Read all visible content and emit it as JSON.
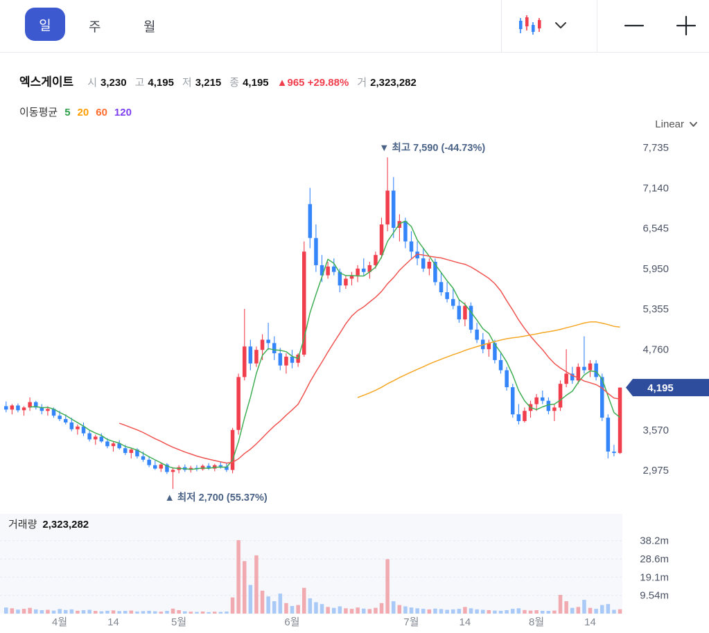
{
  "toolbar": {
    "tabs": [
      {
        "label": "일",
        "active": true
      },
      {
        "label": "주",
        "active": false
      },
      {
        "label": "월",
        "active": false
      }
    ],
    "chart_type_icon": "candlestick-chart-icon",
    "zoom_out_label": "−",
    "zoom_in_label": "+"
  },
  "header": {
    "stock_name": "엑스게이트",
    "fields": [
      {
        "label": "시",
        "value": "3,230"
      },
      {
        "label": "고",
        "value": "4,195"
      },
      {
        "label": "저",
        "value": "3,215"
      },
      {
        "label": "종",
        "value": "4,195"
      }
    ],
    "change": "▲965 +29.88%",
    "volume_label": "거",
    "volume_value": "2,323,282"
  },
  "ma_legend": {
    "title": "이동평균",
    "items": [
      {
        "label": "5",
        "color": "#2fa14e"
      },
      {
        "label": "20",
        "color": "#ff9d00"
      },
      {
        "label": "60",
        "color": "#ff6b2c"
      },
      {
        "label": "120",
        "color": "#7d3ff0"
      }
    ]
  },
  "scale_selector": {
    "label": "Linear",
    "icon": "chevron-down-icon"
  },
  "volume_panel": {
    "title": "거래량",
    "value": "2,323,282"
  },
  "chart_data": {
    "type": "candlestick",
    "title": "엑스게이트 일봉 차트",
    "y_axis_labels": [
      {
        "v": 7735,
        "label": "7,735"
      },
      {
        "v": 7140,
        "label": "7,140"
      },
      {
        "v": 6545,
        "label": "6,545"
      },
      {
        "v": 5950,
        "label": "5,950"
      },
      {
        "v": 5355,
        "label": "5,355"
      },
      {
        "v": 4760,
        "label": "4,760"
      },
      {
        "v": 3570,
        "label": "3,570"
      },
      {
        "v": 2975,
        "label": "2,975"
      }
    ],
    "price_range": [
      2975,
      7735
    ],
    "price_badge": {
      "v": 4195,
      "label": "4,195"
    },
    "volume_axis_labels": [
      {
        "v": 38.2,
        "label": "38.2m"
      },
      {
        "v": 28.6,
        "label": "28.6m"
      },
      {
        "v": 19.1,
        "label": "19.1m"
      },
      {
        "v": 9.54,
        "label": "9.54m"
      }
    ],
    "x_ticks": [
      {
        "i": 9,
        "label": "4월"
      },
      {
        "i": 18,
        "label": "14"
      },
      {
        "i": 29,
        "label": "5월"
      },
      {
        "i": 48,
        "label": "6월"
      },
      {
        "i": 68,
        "label": "7월"
      },
      {
        "i": 77,
        "label": "14"
      },
      {
        "i": 89,
        "label": "8월"
      },
      {
        "i": 98,
        "label": "14"
      }
    ],
    "annotations": {
      "high": {
        "i": 64,
        "v": 7590,
        "marker": "▼",
        "label": "최고 7,590 (-44.73%)"
      },
      "low": {
        "i": 28,
        "v": 2700,
        "marker": "▲",
        "label": "최저 2,700 (55.37%)"
      }
    },
    "ma_periods": [
      5,
      20,
      60
    ],
    "colors": {
      "up": "#f03e4d",
      "down": "#3485fa",
      "ma5": "#3fae53",
      "ma20": "#ef5350",
      "ma60": "#f5a623",
      "vol_up": "#f2aab1",
      "vol_down": "#a9c9f7",
      "badge": "#2e4e9d",
      "annotation": "#4a6286"
    },
    "candles": [
      [
        3920,
        3990,
        3830,
        3870
      ],
      [
        3870,
        3950,
        3800,
        3930
      ],
      [
        3930,
        3960,
        3830,
        3860
      ],
      [
        3860,
        3920,
        3780,
        3900
      ],
      [
        3900,
        4050,
        3850,
        3980
      ],
      [
        3980,
        4000,
        3870,
        3900
      ],
      [
        3900,
        3950,
        3800,
        3850
      ],
      [
        3850,
        3920,
        3780,
        3880
      ],
      [
        3880,
        3900,
        3750,
        3780
      ],
      [
        3780,
        3850,
        3700,
        3730
      ],
      [
        3730,
        3800,
        3650,
        3680
      ],
      [
        3680,
        3750,
        3550,
        3580
      ],
      [
        3580,
        3650,
        3500,
        3620
      ],
      [
        3620,
        3680,
        3480,
        3520
      ],
      [
        3520,
        3560,
        3400,
        3430
      ],
      [
        3430,
        3500,
        3350,
        3470
      ],
      [
        3470,
        3520,
        3380,
        3400
      ],
      [
        3400,
        3450,
        3300,
        3330
      ],
      [
        3330,
        3400,
        3250,
        3370
      ],
      [
        3370,
        3420,
        3280,
        3300
      ],
      [
        3300,
        3350,
        3200,
        3230
      ],
      [
        3230,
        3300,
        3150,
        3280
      ],
      [
        3280,
        3300,
        3150,
        3180
      ],
      [
        3180,
        3250,
        3100,
        3130
      ],
      [
        3130,
        3180,
        3020,
        3050
      ],
      [
        3050,
        3120,
        2980,
        3000
      ],
      [
        3000,
        3080,
        2950,
        3060
      ],
      [
        3060,
        3080,
        2920,
        2950
      ],
      [
        2950,
        3020,
        2700,
        2980
      ],
      [
        2980,
        3050,
        2930,
        3020
      ],
      [
        3020,
        3060,
        2950,
        2980
      ],
      [
        2980,
        3040,
        2940,
        3010
      ],
      [
        3010,
        3050,
        2960,
        2990
      ],
      [
        2990,
        3060,
        2970,
        3040
      ],
      [
        3040,
        3080,
        2980,
        3000
      ],
      [
        3000,
        3070,
        2960,
        3050
      ],
      [
        3050,
        3100,
        3000,
        3030
      ],
      [
        3030,
        3080,
        2950,
        2980
      ],
      [
        2980,
        3600,
        2930,
        3570
      ],
      [
        3570,
        4400,
        3500,
        4350
      ],
      [
        4350,
        5355,
        4300,
        4800
      ],
      [
        4800,
        4900,
        4450,
        4550
      ],
      [
        4550,
        4800,
        4500,
        4750
      ],
      [
        4750,
        4980,
        4600,
        4900
      ],
      [
        4900,
        5150,
        4750,
        4850
      ],
      [
        4850,
        4950,
        4600,
        4700
      ],
      [
        4700,
        4780,
        4450,
        4520
      ],
      [
        4520,
        4700,
        4400,
        4650
      ],
      [
        4650,
        4750,
        4480,
        4560
      ],
      [
        4560,
        4700,
        4500,
        4680
      ],
      [
        4680,
        6350,
        4650,
        6200
      ],
      [
        6900,
        7140,
        6250,
        6400
      ],
      [
        6400,
        6600,
        5900,
        6000
      ],
      [
        6000,
        6150,
        5750,
        5850
      ],
      [
        5850,
        6050,
        5800,
        5980
      ],
      [
        5980,
        6100,
        5850,
        5900
      ],
      [
        5900,
        5950,
        5600,
        5700
      ],
      [
        5700,
        5850,
        5650,
        5800
      ],
      [
        5800,
        5900,
        5700,
        5850
      ],
      [
        5850,
        6000,
        5750,
        5950
      ],
      [
        5950,
        6100,
        5850,
        5900
      ],
      [
        5900,
        6050,
        5800,
        6000
      ],
      [
        6000,
        6200,
        5950,
        6150
      ],
      [
        6150,
        6700,
        6100,
        6600
      ],
      [
        6600,
        7590,
        6500,
        7100
      ],
      [
        7100,
        7300,
        6400,
        6550
      ],
      [
        6550,
        6750,
        6350,
        6650
      ],
      [
        6650,
        6700,
        6250,
        6350
      ],
      [
        6350,
        6500,
        6100,
        6200
      ],
      [
        6200,
        6350,
        6000,
        6100
      ],
      [
        6100,
        6250,
        5900,
        5950
      ],
      [
        5950,
        6100,
        5850,
        6050
      ],
      [
        6050,
        6100,
        5700,
        5750
      ],
      [
        5750,
        5900,
        5550,
        5600
      ],
      [
        5600,
        5750,
        5450,
        5500
      ],
      [
        5500,
        5650,
        5350,
        5400
      ],
      [
        5400,
        5500,
        5150,
        5200
      ],
      [
        5200,
        5450,
        5100,
        5400
      ],
      [
        5400,
        5450,
        5000,
        5050
      ],
      [
        5050,
        5150,
        4850,
        4900
      ],
      [
        4900,
        5000,
        4700,
        4760
      ],
      [
        4760,
        4900,
        4650,
        4850
      ],
      [
        4850,
        4900,
        4550,
        4600
      ],
      [
        4600,
        4700,
        4400,
        4450
      ],
      [
        4450,
        4500,
        4150,
        4200
      ],
      [
        4200,
        4250,
        3750,
        3800
      ],
      [
        3800,
        3950,
        3650,
        3700
      ],
      [
        3700,
        3900,
        3680,
        3850
      ],
      [
        3850,
        4000,
        3750,
        3950
      ],
      [
        3950,
        4100,
        3850,
        4050
      ],
      [
        4050,
        4150,
        3950,
        4000
      ],
      [
        4000,
        4050,
        3800,
        3850
      ],
      [
        3850,
        3950,
        3700,
        3900
      ],
      [
        3900,
        4300,
        3850,
        4250
      ],
      [
        4250,
        4760,
        4200,
        4400
      ],
      [
        4400,
        4500,
        4250,
        4300
      ],
      [
        4300,
        4550,
        4250,
        4500
      ],
      [
        4500,
        4950,
        4400,
        4450
      ],
      [
        4450,
        4600,
        4350,
        4550
      ],
      [
        4550,
        4600,
        4300,
        4350
      ],
      [
        4350,
        4400,
        3700,
        3750
      ],
      [
        3750,
        3800,
        3150,
        3250
      ],
      [
        3250,
        3350,
        3180,
        3230
      ],
      [
        3230,
        4195,
        3215,
        4195
      ]
    ],
    "volumes_m": [
      3.2,
      2.8,
      2.1,
      2.5,
      3.0,
      2.2,
      1.8,
      2.0,
      1.6,
      2.4,
      1.9,
      2.2,
      1.5,
      1.8,
      2.0,
      1.4,
      1.2,
      1.5,
      1.7,
      1.3,
      1.4,
      1.6,
      1.1,
      1.3,
      1.5,
      1.2,
      1.0,
      1.4,
      2.6,
      1.8,
      1.2,
      1.0,
      0.9,
      1.1,
      0.8,
      1.0,
      0.9,
      1.1,
      8.5,
      38.5,
      27.5,
      15.0,
      30.5,
      12.0,
      9.0,
      6.5,
      10.5,
      5.5,
      4.0,
      4.5,
      13.5,
      8.0,
      6.0,
      5.0,
      3.5,
      3.0,
      3.8,
      2.8,
      2.5,
      3.2,
      2.6,
      2.4,
      3.0,
      5.5,
      28.5,
      6.5,
      4.5,
      3.8,
      3.2,
      2.8,
      2.5,
      2.2,
      2.6,
      2.4,
      2.0,
      2.2,
      2.5,
      3.5,
      2.8,
      2.2,
      2.0,
      1.8,
      1.6,
      1.5,
      1.8,
      2.5,
      2.8,
      1.9,
      1.6,
      1.8,
      1.5,
      1.4,
      1.6,
      9.8,
      6.5,
      3.0,
      3.5,
      7.2,
      3.0,
      2.5,
      4.5,
      5.0,
      2.0,
      2.3
    ]
  }
}
